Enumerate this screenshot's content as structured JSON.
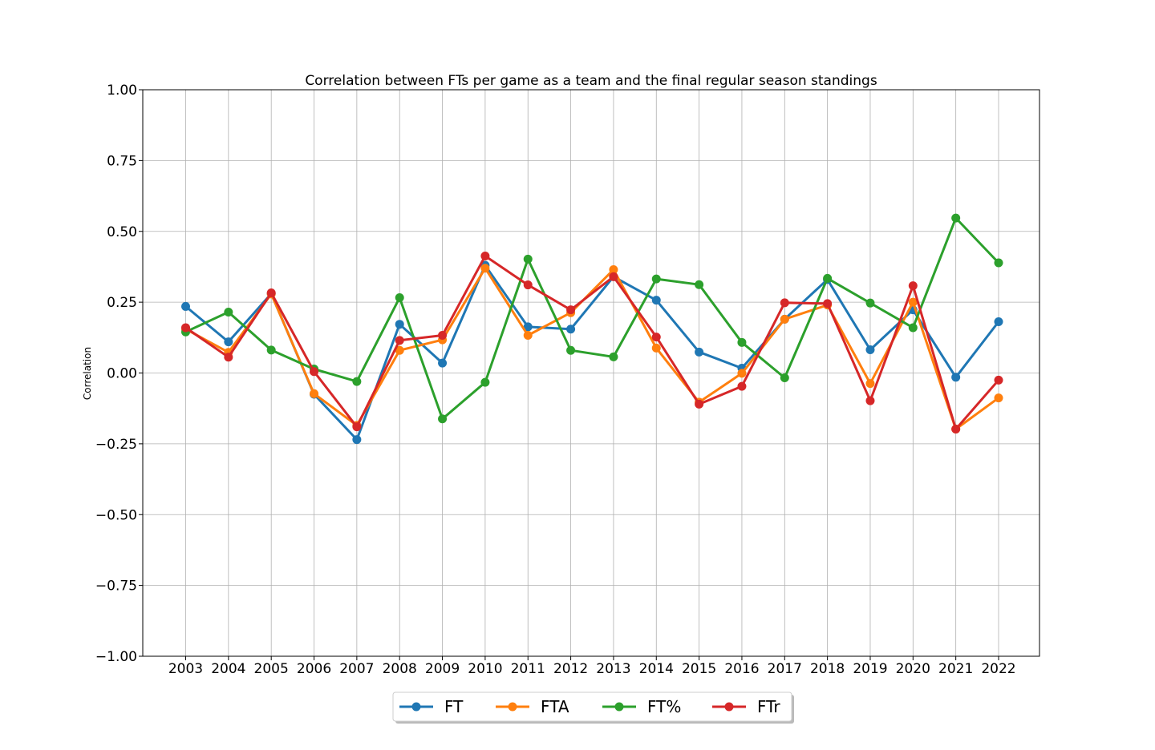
{
  "chart_data": {
    "type": "line",
    "title": "Correlation between FTs per game as a team and the final regular season standings",
    "xlabel": "",
    "ylabel": "Correlation",
    "categories": [
      "2003",
      "2004",
      "2005",
      "2006",
      "2007",
      "2008",
      "2009",
      "2010",
      "2011",
      "2012",
      "2013",
      "2014",
      "2015",
      "2016",
      "2017",
      "2018",
      "2019",
      "2020",
      "2021",
      "2022"
    ],
    "ylim": [
      -1.0,
      1.0
    ],
    "yticks": [
      -1.0,
      -0.75,
      -0.5,
      -0.25,
      0.0,
      0.25,
      0.5,
      0.75,
      1.0
    ],
    "ytick_labels": [
      "−1.00",
      "−0.75",
      "−0.50",
      "−0.25",
      "0.00",
      "0.25",
      "0.50",
      "0.75",
      "1.00"
    ],
    "grid": true,
    "legend_position": "bottom-center",
    "series": [
      {
        "name": "FT",
        "color": "#1f77b4",
        "values": [
          0.235,
          0.11,
          0.28,
          -0.075,
          -0.235,
          0.172,
          0.035,
          0.38,
          0.163,
          0.155,
          0.34,
          0.257,
          0.074,
          0.017,
          0.19,
          0.33,
          0.082,
          0.223,
          -0.015,
          0.181
        ]
      },
      {
        "name": "FTA",
        "color": "#ff7f0e",
        "values": [
          0.155,
          0.073,
          0.279,
          -0.073,
          -0.185,
          0.08,
          0.117,
          0.37,
          0.133,
          0.213,
          0.365,
          0.088,
          -0.103,
          -0.001,
          0.19,
          0.24,
          -0.037,
          0.25,
          -0.198,
          -0.088
        ]
      },
      {
        "name": "FT%",
        "color": "#2ca02c",
        "values": [
          0.145,
          0.215,
          0.081,
          0.014,
          -0.03,
          0.266,
          -0.162,
          -0.033,
          0.402,
          0.08,
          0.057,
          0.332,
          0.312,
          0.108,
          -0.017,
          0.334,
          0.247,
          0.16,
          0.547,
          0.389
        ]
      },
      {
        "name": "FTr",
        "color": "#d62728",
        "values": [
          0.16,
          0.056,
          0.283,
          0.005,
          -0.19,
          0.115,
          0.133,
          0.413,
          0.311,
          0.223,
          0.34,
          0.127,
          -0.11,
          -0.047,
          0.248,
          0.245,
          -0.098,
          0.308,
          -0.198,
          -0.025
        ]
      }
    ]
  }
}
